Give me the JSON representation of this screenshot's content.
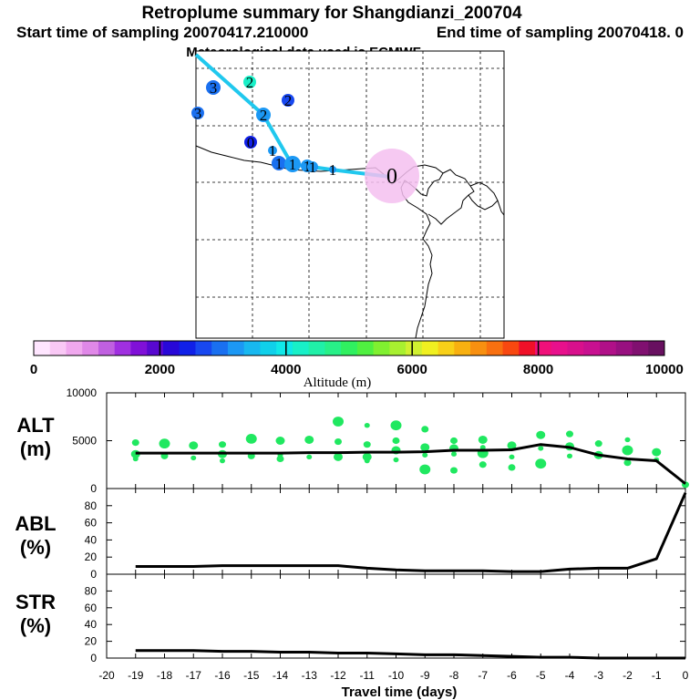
{
  "header": {
    "title": "Retroplume summary for Shangdianzi_200704",
    "start_label": "Start time of sampling 20070417.210000",
    "end_label": "End time of sampling 20070418.    0",
    "met_label": "Meteorological data used is ECMWF"
  },
  "colors": {
    "alt_scale": [
      "#ffe6ff",
      "#f9c8f5",
      "#f0a8ee",
      "#e088e8",
      "#c060e0",
      "#a030e0",
      "#8010d8",
      "#5808d0",
      "#2808d8",
      "#1020e8",
      "#1848f0",
      "#1a70f0",
      "#1c98f4",
      "#18b8f0",
      "#10d0ea",
      "#10e8e8",
      "#18f0c8",
      "#20f0a8",
      "#28f088",
      "#30f060",
      "#50f040",
      "#80f030",
      "#a8f030",
      "#d0f030",
      "#f0f020",
      "#f8d018",
      "#f8b010",
      "#f89010",
      "#f87010",
      "#f84810",
      "#f01028",
      "#f0107a",
      "#e8108c",
      "#d8108c",
      "#c81090",
      "#b01088",
      "#981080",
      "#801070",
      "#681060"
    ],
    "trajectory_line": "#20c8ee",
    "source_circle": "#f4c0f0",
    "alt_dots": "#20e860",
    "curve": "#000000"
  },
  "colorbar": {
    "tick_labels": [
      "0",
      "2000",
      "4000",
      "6000",
      "8000",
      "10000"
    ],
    "label": "Altitude (m)",
    "min": 0,
    "max": 10000
  },
  "map": {
    "source_marker": "0",
    "markers": [
      {
        "label": "3",
        "color": "#1a70f0"
      },
      {
        "label": "2",
        "color": "#18f0c8"
      },
      {
        "label": "3",
        "color": "#1a70f0"
      },
      {
        "label": "2",
        "color": "#1848f0"
      },
      {
        "label": "2",
        "color": "#1c98f4"
      },
      {
        "label": "0",
        "color": "#1020e8"
      },
      {
        "label": "1",
        "color": "#1c98f4"
      },
      {
        "label": "1",
        "color": "#1a70f0"
      },
      {
        "label": "1",
        "color": "#1c98f4"
      },
      {
        "label": "1",
        "color": "#1c98f4"
      },
      {
        "label": "1",
        "color": "#1c98f4"
      },
      {
        "label": "1",
        "color": "#1c98f4"
      }
    ]
  },
  "chart_data": [
    {
      "type": "line",
      "panel": "ALT",
      "ylabel_line1": "ALT",
      "ylabel_line2": "(m)",
      "ylim": [
        0,
        10000
      ],
      "yticks": [
        0,
        5000,
        10000
      ],
      "ytick_labels": [
        "0",
        "5000",
        "10000"
      ],
      "x": [
        -19,
        -18,
        -17,
        -16,
        -15,
        -14,
        -13,
        -12,
        -11,
        -10,
        -9,
        -8,
        -7,
        -6,
        -5,
        -4,
        -3,
        -2,
        -1,
        0
      ],
      "values": [
        3700,
        3700,
        3700,
        3700,
        3700,
        3700,
        3750,
        3750,
        3800,
        3800,
        3850,
        4000,
        4000,
        4050,
        4600,
        4300,
        3500,
        3100,
        2900,
        500
      ],
      "scatter_points": [
        {
          "x": -19,
          "y": 4800
        },
        {
          "x": -19,
          "y": 3600
        },
        {
          "x": -19,
          "y": 3100
        },
        {
          "x": -18,
          "y": 4700
        },
        {
          "x": -18,
          "y": 3400
        },
        {
          "x": -17,
          "y": 4500
        },
        {
          "x": -17,
          "y": 3200
        },
        {
          "x": -16,
          "y": 4600
        },
        {
          "x": -16,
          "y": 3600
        },
        {
          "x": -16,
          "y": 2900
        },
        {
          "x": -15,
          "y": 5200
        },
        {
          "x": -15,
          "y": 3400
        },
        {
          "x": -14,
          "y": 5000
        },
        {
          "x": -14,
          "y": 3500
        },
        {
          "x": -14,
          "y": 3100
        },
        {
          "x": -13,
          "y": 5100
        },
        {
          "x": -13,
          "y": 3300
        },
        {
          "x": -12,
          "y": 7000
        },
        {
          "x": -12,
          "y": 4900
        },
        {
          "x": -12,
          "y": 3300
        },
        {
          "x": -11,
          "y": 6600
        },
        {
          "x": -11,
          "y": 4600
        },
        {
          "x": -11,
          "y": 3300
        },
        {
          "x": -11,
          "y": 2900
        },
        {
          "x": -10,
          "y": 6600
        },
        {
          "x": -10,
          "y": 5000
        },
        {
          "x": -10,
          "y": 4000
        },
        {
          "x": -10,
          "y": 3000
        },
        {
          "x": -9,
          "y": 6200
        },
        {
          "x": -9,
          "y": 4300
        },
        {
          "x": -9,
          "y": 3500
        },
        {
          "x": -9,
          "y": 2000
        },
        {
          "x": -8,
          "y": 5000
        },
        {
          "x": -8,
          "y": 4200
        },
        {
          "x": -8,
          "y": 3600
        },
        {
          "x": -8,
          "y": 1900
        },
        {
          "x": -7,
          "y": 5100
        },
        {
          "x": -7,
          "y": 4300
        },
        {
          "x": -7,
          "y": 3700
        },
        {
          "x": -7,
          "y": 2500
        },
        {
          "x": -6,
          "y": 4500
        },
        {
          "x": -6,
          "y": 3300
        },
        {
          "x": -6,
          "y": 2200
        },
        {
          "x": -5,
          "y": 5600
        },
        {
          "x": -5,
          "y": 4200
        },
        {
          "x": -5,
          "y": 2600
        },
        {
          "x": -4,
          "y": 5700
        },
        {
          "x": -4,
          "y": 4400
        },
        {
          "x": -4,
          "y": 3400
        },
        {
          "x": -3,
          "y": 4700
        },
        {
          "x": -3,
          "y": 3500
        },
        {
          "x": -2,
          "y": 5100
        },
        {
          "x": -2,
          "y": 4000
        },
        {
          "x": -2,
          "y": 2700
        },
        {
          "x": -1,
          "y": 3800
        },
        {
          "x": -1,
          "y": 3000
        },
        {
          "x": 0,
          "y": 400
        }
      ]
    },
    {
      "type": "line",
      "panel": "ABL",
      "ylabel_line1": "ABL",
      "ylabel_line2": "(%)",
      "ylim": [
        0,
        100
      ],
      "yticks": [
        0,
        20,
        40,
        60,
        80
      ],
      "ytick_labels": [
        "0",
        "20",
        "40",
        "60",
        "80"
      ],
      "x": [
        -19,
        -18,
        -17,
        -16,
        -15,
        -14,
        -13,
        -12,
        -11,
        -10,
        -9,
        -8,
        -7,
        -6,
        -5,
        -4,
        -3,
        -2,
        -1,
        0
      ],
      "values": [
        9,
        9,
        9,
        10,
        10,
        10,
        10,
        10,
        7,
        5,
        4,
        4,
        4,
        3,
        3,
        6,
        7,
        7,
        18,
        95
      ]
    },
    {
      "type": "line",
      "panel": "STR",
      "ylabel_line1": "STR",
      "ylabel_line2": "(%)",
      "ylim": [
        0,
        100
      ],
      "yticks": [
        0,
        20,
        40,
        60,
        80
      ],
      "ytick_labels": [
        "0",
        "20",
        "40",
        "60",
        "80"
      ],
      "x": [
        -19,
        -18,
        -17,
        -16,
        -15,
        -14,
        -13,
        -12,
        -11,
        -10,
        -9,
        -8,
        -7,
        -6,
        -5,
        -4,
        -3,
        -2,
        -1,
        0
      ],
      "values": [
        9,
        9,
        9,
        8,
        8,
        7,
        7,
        6,
        6,
        5,
        4,
        4,
        3,
        2,
        1,
        1,
        0,
        0,
        0,
        0
      ],
      "xlabel": "Travel time (days)",
      "xlim": [
        -20,
        0
      ],
      "xticks": [
        -20,
        -19,
        -18,
        -17,
        -16,
        -15,
        -14,
        -13,
        -12,
        -11,
        -10,
        -9,
        -8,
        -7,
        -6,
        -5,
        -4,
        -3,
        -2,
        -1,
        0
      ],
      "xtick_labels": [
        "-20",
        "-19",
        "-18",
        "-17",
        "-16",
        "-15",
        "-14",
        "-13",
        "-12",
        "-11",
        "-10",
        "-9",
        "-8",
        "-7",
        "-6",
        "-5",
        "-4",
        "-3",
        "-2",
        "-1",
        "0"
      ]
    }
  ]
}
